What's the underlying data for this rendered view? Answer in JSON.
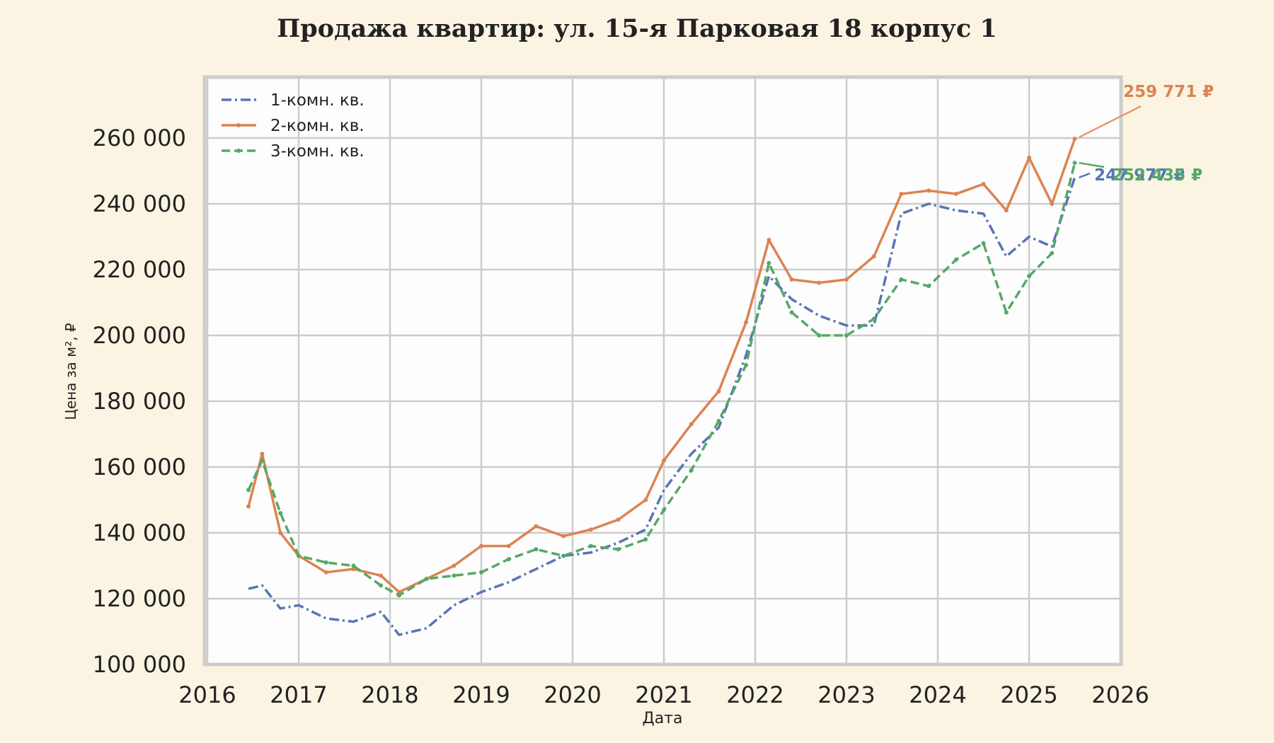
{
  "chart_data": {
    "type": "line",
    "title": "Продажа квартир: ул. 15-я Парковая 18 корпус 1",
    "xlabel": "Дата",
    "ylabel": "Цена за м², ₽",
    "xlim": [
      2016,
      2026
    ],
    "ylim": [
      100000,
      275000
    ],
    "grid": true,
    "legend_position": "upper left",
    "x_ticks": [
      "2016",
      "2017",
      "2018",
      "2019",
      "2020",
      "2021",
      "2022",
      "2023",
      "2024",
      "2025",
      "2026"
    ],
    "y_ticks": [
      "100 000",
      "120 000",
      "140 000",
      "160 000",
      "180 000",
      "200 000",
      "220 000",
      "240 000",
      "260 000"
    ],
    "x": [
      2016.45,
      2016.6,
      2016.8,
      2017.0,
      2017.3,
      2017.6,
      2017.9,
      2018.1,
      2018.4,
      2018.7,
      2019.0,
      2019.3,
      2019.6,
      2019.9,
      2020.2,
      2020.5,
      2020.8,
      2021.0,
      2021.3,
      2021.6,
      2021.9,
      2022.15,
      2022.4,
      2022.7,
      2023.0,
      2023.3,
      2023.6,
      2023.9,
      2024.2,
      2024.5,
      2024.75,
      2025.0,
      2025.25,
      2025.5
    ],
    "series": [
      {
        "name": "1-комн. кв.",
        "color": "#5875b4",
        "style": "dashdot",
        "values": [
          123000,
          124000,
          117000,
          118000,
          114000,
          113000,
          116000,
          109000,
          111000,
          118000,
          122000,
          125000,
          129000,
          133000,
          134000,
          137000,
          141000,
          153000,
          164000,
          172000,
          194000,
          218000,
          211000,
          206000,
          203000,
          203000,
          237000,
          240000,
          238000,
          237000,
          224000,
          230000,
          227000,
          247977
        ]
      },
      {
        "name": "2-комн. кв.",
        "color": "#dc8352",
        "style": "solid-marker",
        "values": [
          148000,
          164000,
          140000,
          133000,
          128000,
          129000,
          127000,
          122000,
          126000,
          130000,
          136000,
          136000,
          142000,
          139000,
          141000,
          144000,
          150000,
          162000,
          173000,
          183000,
          204000,
          229000,
          217000,
          216000,
          217000,
          224000,
          243000,
          244000,
          243000,
          246000,
          238000,
          254000,
          240000,
          259771
        ]
      },
      {
        "name": "3-комн. кв.",
        "color": "#55a868",
        "style": "dashed-marker",
        "values": [
          153000,
          162000,
          146000,
          133000,
          131000,
          130000,
          124000,
          121000,
          126000,
          127000,
          128000,
          132000,
          135000,
          133000,
          136000,
          135000,
          138000,
          147000,
          159000,
          174000,
          191000,
          222000,
          207000,
          200000,
          200000,
          205000,
          217000,
          215000,
          223000,
          228000,
          207000,
          218000,
          225000,
          252435
        ]
      }
    ],
    "annotations": [
      {
        "series": "2-комн. кв.",
        "text": "259 771 ₽",
        "color": "#dc8352"
      },
      {
        "series": "1-комн. кв.",
        "text": "247 977 ₽",
        "color": "#5875b4"
      },
      {
        "series": "3-комн. кв.",
        "text": "252 435 ₽",
        "color": "#55a868"
      }
    ]
  },
  "colors": {
    "background": "#fbf4e2",
    "plot_background": "#fdfdfd",
    "grid": "#cccccc"
  }
}
